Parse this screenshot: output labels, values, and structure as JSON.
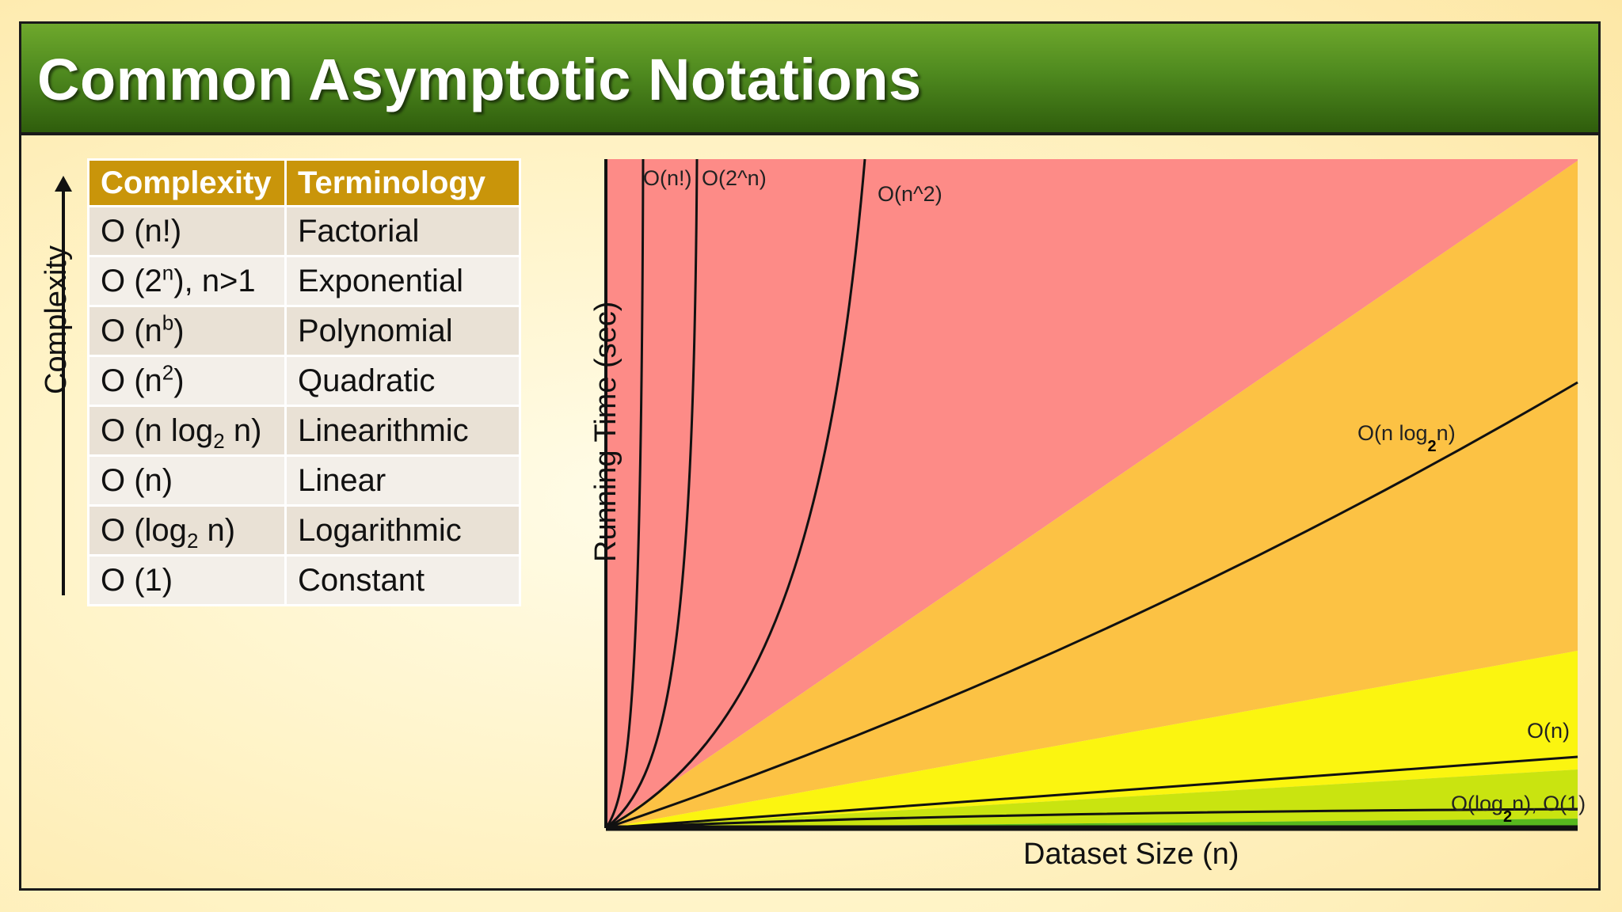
{
  "title": "Common Asymptotic Notations",
  "complexity_axis_label": "Complexity",
  "table": {
    "headers": [
      "Complexity",
      "Terminology"
    ],
    "rows": [
      {
        "base": "O (n!)",
        "sup": "",
        "sub": "",
        "post": "",
        "term": "Factorial"
      },
      {
        "base": "O (2",
        "sup": "n",
        "sub": "",
        "post": "), n>1",
        "term": "Exponential"
      },
      {
        "base": "O (n",
        "sup": "b",
        "sub": "",
        "post": ")",
        "term": "Polynomial"
      },
      {
        "base": "O (n",
        "sup": "2",
        "sub": "",
        "post": ")",
        "term": "Quadratic"
      },
      {
        "base": "O (n log",
        "sup": "",
        "sub": "2",
        "post": " n)",
        "term": "Linearithmic"
      },
      {
        "base": "O (n)",
        "sup": "",
        "sub": "",
        "post": "",
        "term": "Linear"
      },
      {
        "base": "O (log",
        "sup": "",
        "sub": "2",
        "post": " n)",
        "term": "Logarithmic"
      },
      {
        "base": "O (1)",
        "sup": "",
        "sub": "",
        "post": "",
        "term": "Constant"
      }
    ]
  },
  "chart": {
    "ylabel": "Running Time (sec)",
    "xlabel": "Dataset Size (n)",
    "curve_labels": {
      "factorial": "O(n!)",
      "exponential": "O(2^n)",
      "quadratic": "O(n^2)",
      "linearithmic_a": "O(n log",
      "linearithmic_sub": "2",
      "linearithmic_b": "n)",
      "linear": "O(n)",
      "log_a": "O(log",
      "log_sub": "2",
      "log_b": "n), O(1)"
    },
    "region_colors": {
      "red": "#fd8b87",
      "orange": "#fcc244",
      "yellow": "#fbf510",
      "lime": "#c9e410",
      "green": "#57b81e"
    }
  },
  "colors": {
    "title_bar": "#4f8a1f",
    "table_header": "#c9950a",
    "row_odd": "#e9e1d5",
    "row_even": "#f3efe9"
  }
}
